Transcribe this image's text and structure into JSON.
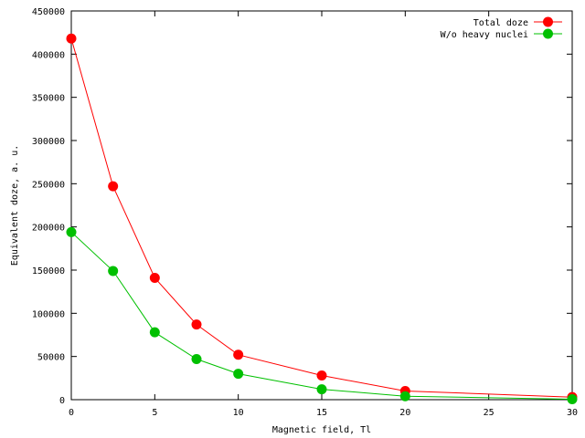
{
  "chart_data": {
    "type": "line",
    "xlabel": "Magnetic field, Tl",
    "ylabel": "Equivalent doze, a. u.",
    "xlim": [
      0,
      30
    ],
    "ylim": [
      0,
      450000
    ],
    "xticks": [
      0,
      5,
      10,
      15,
      20,
      25,
      30
    ],
    "yticks": [
      0,
      50000,
      100000,
      150000,
      200000,
      250000,
      300000,
      350000,
      400000,
      450000
    ],
    "grid": false,
    "legend_position": "top-right",
    "series": [
      {
        "name": "Total doze",
        "color": "#ff0000",
        "x": [
          0,
          2.5,
          5,
          7.5,
          10,
          15,
          20,
          30
        ],
        "y": [
          418000,
          247000,
          141000,
          87000,
          52000,
          28000,
          10000,
          3000
        ]
      },
      {
        "name": "W/o heavy nuclei",
        "color": "#00c000",
        "x": [
          0,
          2.5,
          5,
          7.5,
          10,
          15,
          20,
          30
        ],
        "y": [
          194000,
          149000,
          78000,
          47000,
          30000,
          12000,
          4000,
          500
        ]
      }
    ]
  }
}
